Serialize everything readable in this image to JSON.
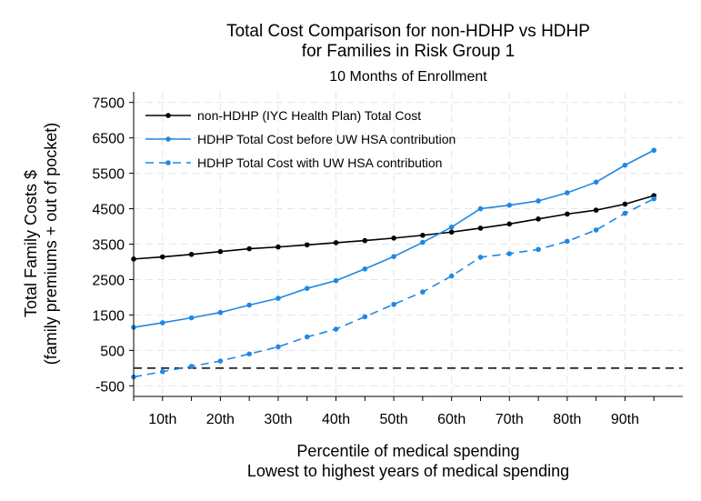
{
  "chart_data": {
    "type": "line",
    "title": "Total Cost Comparison for non-HDHP vs HDHP",
    "title_line2": "for Families in Risk Group 1",
    "subtitle": "10 Months of Enrollment",
    "xlabel": "Percentile of medical spending",
    "xlabel_line2": "Lowest to highest years of medical spending",
    "ylabel": "Total Family Costs $",
    "ylabel_line2": "(family premiums + out of pocket)",
    "ylim": [
      -800,
      7800
    ],
    "xlim": [
      0,
      19
    ],
    "yticks": [
      -500,
      500,
      1500,
      2500,
      3500,
      4500,
      5500,
      6500,
      7500
    ],
    "ytick_labels": [
      "-500",
      "500",
      "1500",
      "2500",
      "3500",
      "4500",
      "5500",
      "6500",
      "7500"
    ],
    "xticks": [
      1,
      3,
      5,
      7,
      9,
      11,
      13,
      15,
      17
    ],
    "xtick_labels": [
      "10th",
      "20th",
      "30th",
      "40th",
      "50th",
      "60th",
      "70th",
      "80th",
      "90th"
    ],
    "x": [
      0,
      1,
      2,
      3,
      4,
      5,
      6,
      7,
      8,
      9,
      10,
      11,
      12,
      13,
      14,
      15,
      16,
      17,
      18
    ],
    "reference_line_y": 0,
    "grid": true,
    "legend_position": "top-left",
    "series": [
      {
        "name": "non-HDHP (IYC Health Plan) Total Cost",
        "color": "#000000",
        "dash": "solid",
        "values": [
          3080,
          3140,
          3210,
          3290,
          3370,
          3420,
          3480,
          3540,
          3600,
          3670,
          3750,
          3840,
          3950,
          4070,
          4210,
          4350,
          4460,
          4630,
          4870
        ]
      },
      {
        "name": "HDHP Total Cost before UW HSA contribution",
        "color": "#1e88e5",
        "dash": "solid",
        "values": [
          1150,
          1280,
          1420,
          1570,
          1780,
          1970,
          2250,
          2470,
          2800,
          3150,
          3550,
          3980,
          4500,
          4600,
          4720,
          4950,
          5250,
          5730,
          6150
        ]
      },
      {
        "name": "HDHP Total Cost with UW HSA contribution",
        "color": "#1e88e5",
        "dash": "dashed",
        "values": [
          -250,
          -100,
          50,
          200,
          400,
          600,
          880,
          1100,
          1450,
          1800,
          2150,
          2600,
          3130,
          3230,
          3350,
          3580,
          3900,
          4370,
          4780
        ]
      }
    ]
  }
}
